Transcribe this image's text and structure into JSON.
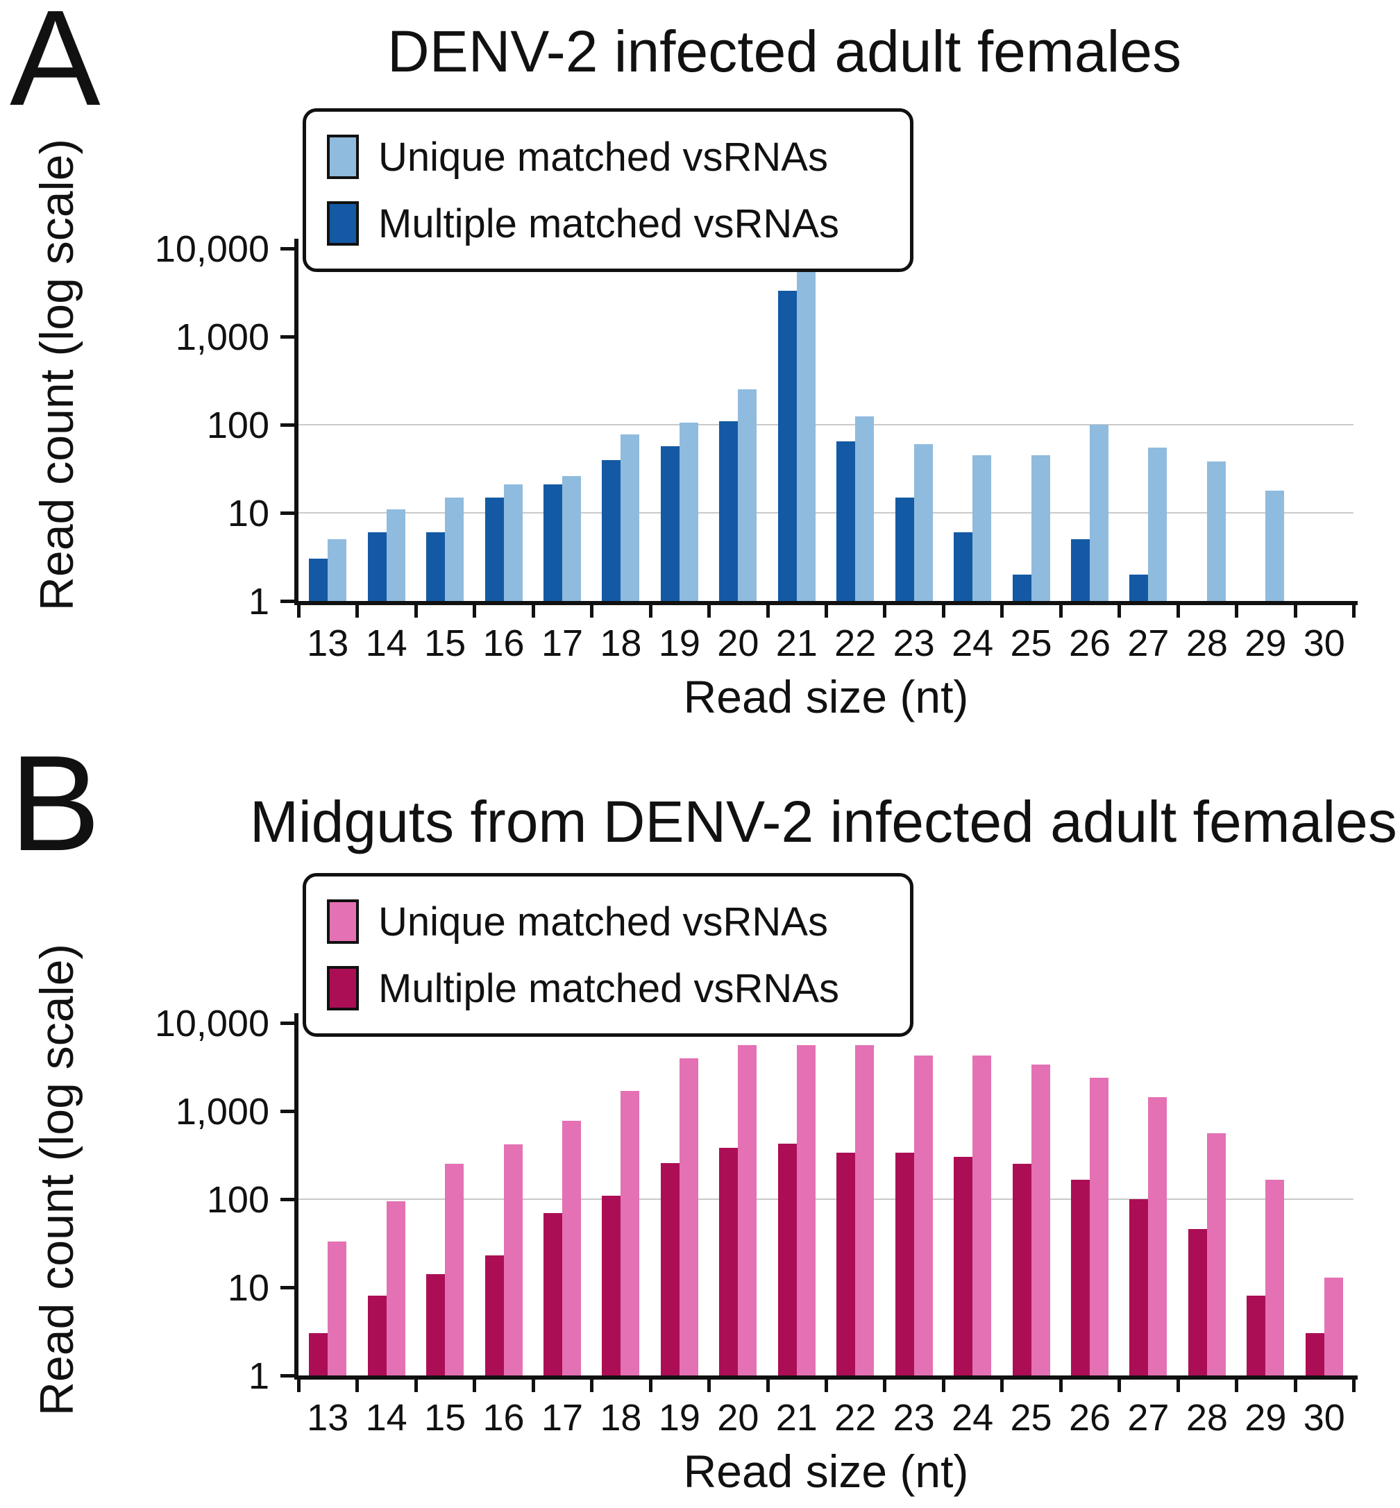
{
  "chart_data": [
    {
      "type": "bar",
      "panel_letter": "A",
      "title": "DENV-2 infected adult females",
      "xlabel": "Read size (nt)",
      "ylabel": "Read count (log scale)",
      "y_scale": "log",
      "ylim": [
        1,
        10000
      ],
      "ytick_labels": [
        "10,000",
        "1,000",
        "100",
        "10",
        "1"
      ],
      "ytick_values": [
        10000,
        1000,
        100,
        10,
        1
      ],
      "gridlines": [
        100,
        10
      ],
      "legend_position": "upper-left",
      "categories": [
        13,
        14,
        15,
        16,
        17,
        18,
        19,
        20,
        21,
        22,
        23,
        24,
        25,
        26,
        27,
        28,
        29,
        30
      ],
      "series": [
        {
          "name": "Unique matched vsRNAs",
          "color": "#8fbbde",
          "values": [
            5,
            11,
            15,
            21,
            26,
            78,
            105,
            250,
            6800,
            125,
            60,
            45,
            45,
            100,
            55,
            38,
            18,
            0
          ]
        },
        {
          "name": "Multiple matched vsRNAs",
          "color": "#1459a4",
          "values": [
            3,
            6,
            6,
            15,
            21,
            40,
            57,
            110,
            3300,
            65,
            15,
            6,
            2,
            5,
            2,
            0,
            0,
            0
          ]
        }
      ]
    },
    {
      "type": "bar",
      "panel_letter": "B",
      "title": "Midguts from DENV-2 infected adult females",
      "xlabel": "Read size (nt)",
      "ylabel": "Read count (log scale)",
      "y_scale": "log",
      "ylim": [
        1,
        10000
      ],
      "ytick_labels": [
        "10,000",
        "1,000",
        "100",
        "10",
        "1"
      ],
      "ytick_values": [
        10000,
        1000,
        100,
        10,
        1
      ],
      "gridlines": [
        100
      ],
      "legend_position": "upper-left",
      "categories": [
        13,
        14,
        15,
        16,
        17,
        18,
        19,
        20,
        21,
        22,
        23,
        24,
        25,
        26,
        27,
        28,
        29,
        30
      ],
      "series": [
        {
          "name": "Unique matched vsRNAs",
          "color": "#e471b3",
          "values": [
            33,
            95,
            250,
            420,
            780,
            1700,
            4000,
            5600,
            5600,
            5600,
            4300,
            4300,
            3400,
            2400,
            1450,
            560,
            165,
            13
          ]
        },
        {
          "name": "Multiple matched vsRNAs",
          "color": "#ac0e56",
          "values": [
            3,
            8,
            14,
            23,
            70,
            110,
            255,
            380,
            430,
            340,
            340,
            300,
            250,
            165,
            100,
            46,
            8,
            3
          ]
        }
      ]
    }
  ]
}
